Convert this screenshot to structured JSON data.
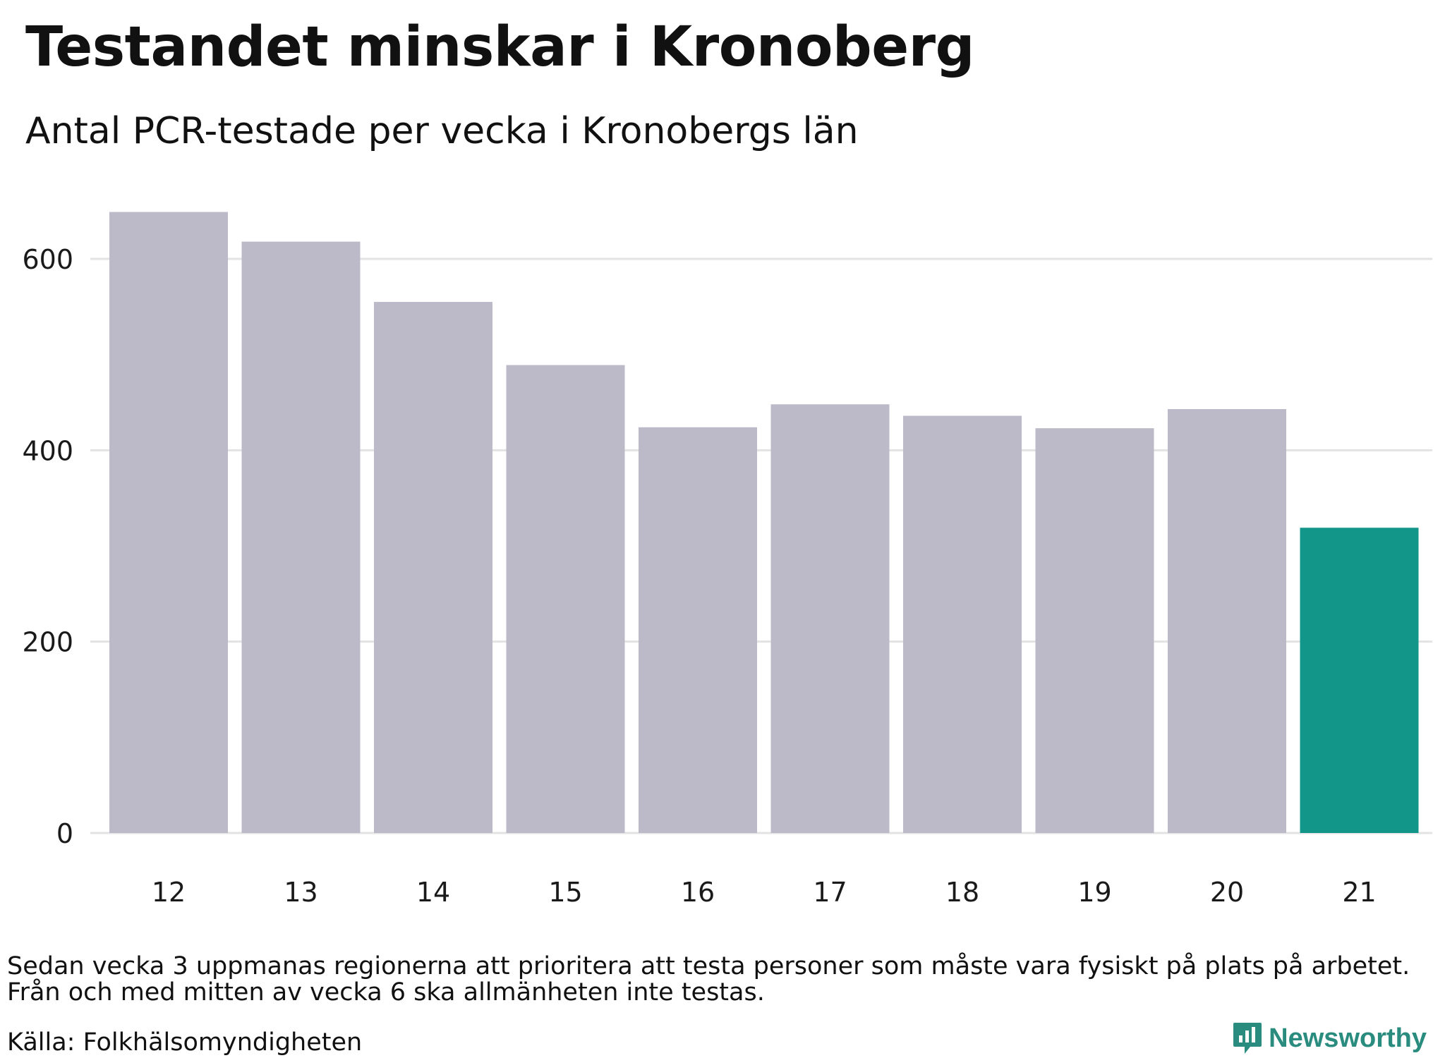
{
  "title": "Testandet minskar i Kronoberg",
  "subtitle": "Antal PCR-testade per vecka i Kronobergs län",
  "notes": [
    "Sedan vecka 3 uppmanas regionerna att prioritera att testa personer som måste vara fysiskt på plats på arbetet.",
    "Från och med mitten av vecka 6 ska allmänheten inte testas."
  ],
  "source": "Källa: Folkhälsomyndigheten",
  "brand": "Newsworthy",
  "colors": {
    "bar": "#bcbac8",
    "highlight": "#13968a",
    "grid": "#e3e3e3",
    "brand": "#2a8c7e"
  },
  "chart_data": {
    "type": "bar",
    "categories": [
      "12",
      "13",
      "14",
      "15",
      "16",
      "17",
      "18",
      "19",
      "20",
      "21"
    ],
    "values": [
      649,
      618,
      555,
      489,
      424,
      448,
      436,
      423,
      443,
      319
    ],
    "highlight_index": 9,
    "yticks": [
      0,
      200,
      400,
      600
    ],
    "ylim": [
      0,
      650
    ],
    "grid": true
  }
}
